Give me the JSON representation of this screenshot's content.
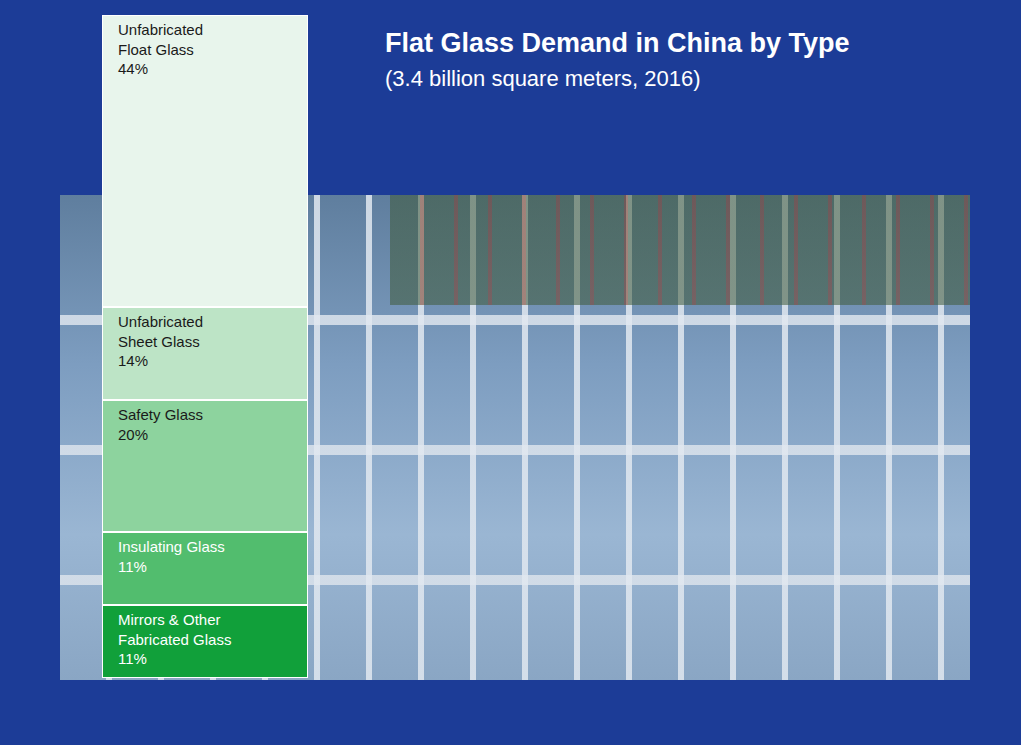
{
  "chart_data": {
    "type": "bar",
    "stacked": true,
    "title": "Flat Glass Demand in China by Type",
    "subtitle": "(3.4 billion square meters, 2016)",
    "categories": [
      null
    ],
    "ylim": [
      0,
      100
    ],
    "tick_labels": false,
    "data_labels": true,
    "series": [
      {
        "name": "Unfabricated Float Glass",
        "color": "#e8f5ec",
        "values": [
          44
        ],
        "value_labels": [
          "44%"
        ]
      },
      {
        "name": "Unfabricated Sheet Glass",
        "color": "#bde4c6",
        "values": [
          14
        ],
        "value_labels": [
          "14%"
        ]
      },
      {
        "name": "Safety Glass",
        "color": "#8dd39e",
        "values": [
          20
        ],
        "value_labels": [
          "20%"
        ]
      },
      {
        "name": "Insulating Glass",
        "color": "#52bd6e",
        "values": [
          11
        ],
        "value_labels": [
          "11%"
        ]
      },
      {
        "name": "Mirrors & Other Fabricated Glass",
        "color": "#11a03a",
        "values": [
          11
        ],
        "value_labels": [
          "11%"
        ]
      }
    ]
  }
}
